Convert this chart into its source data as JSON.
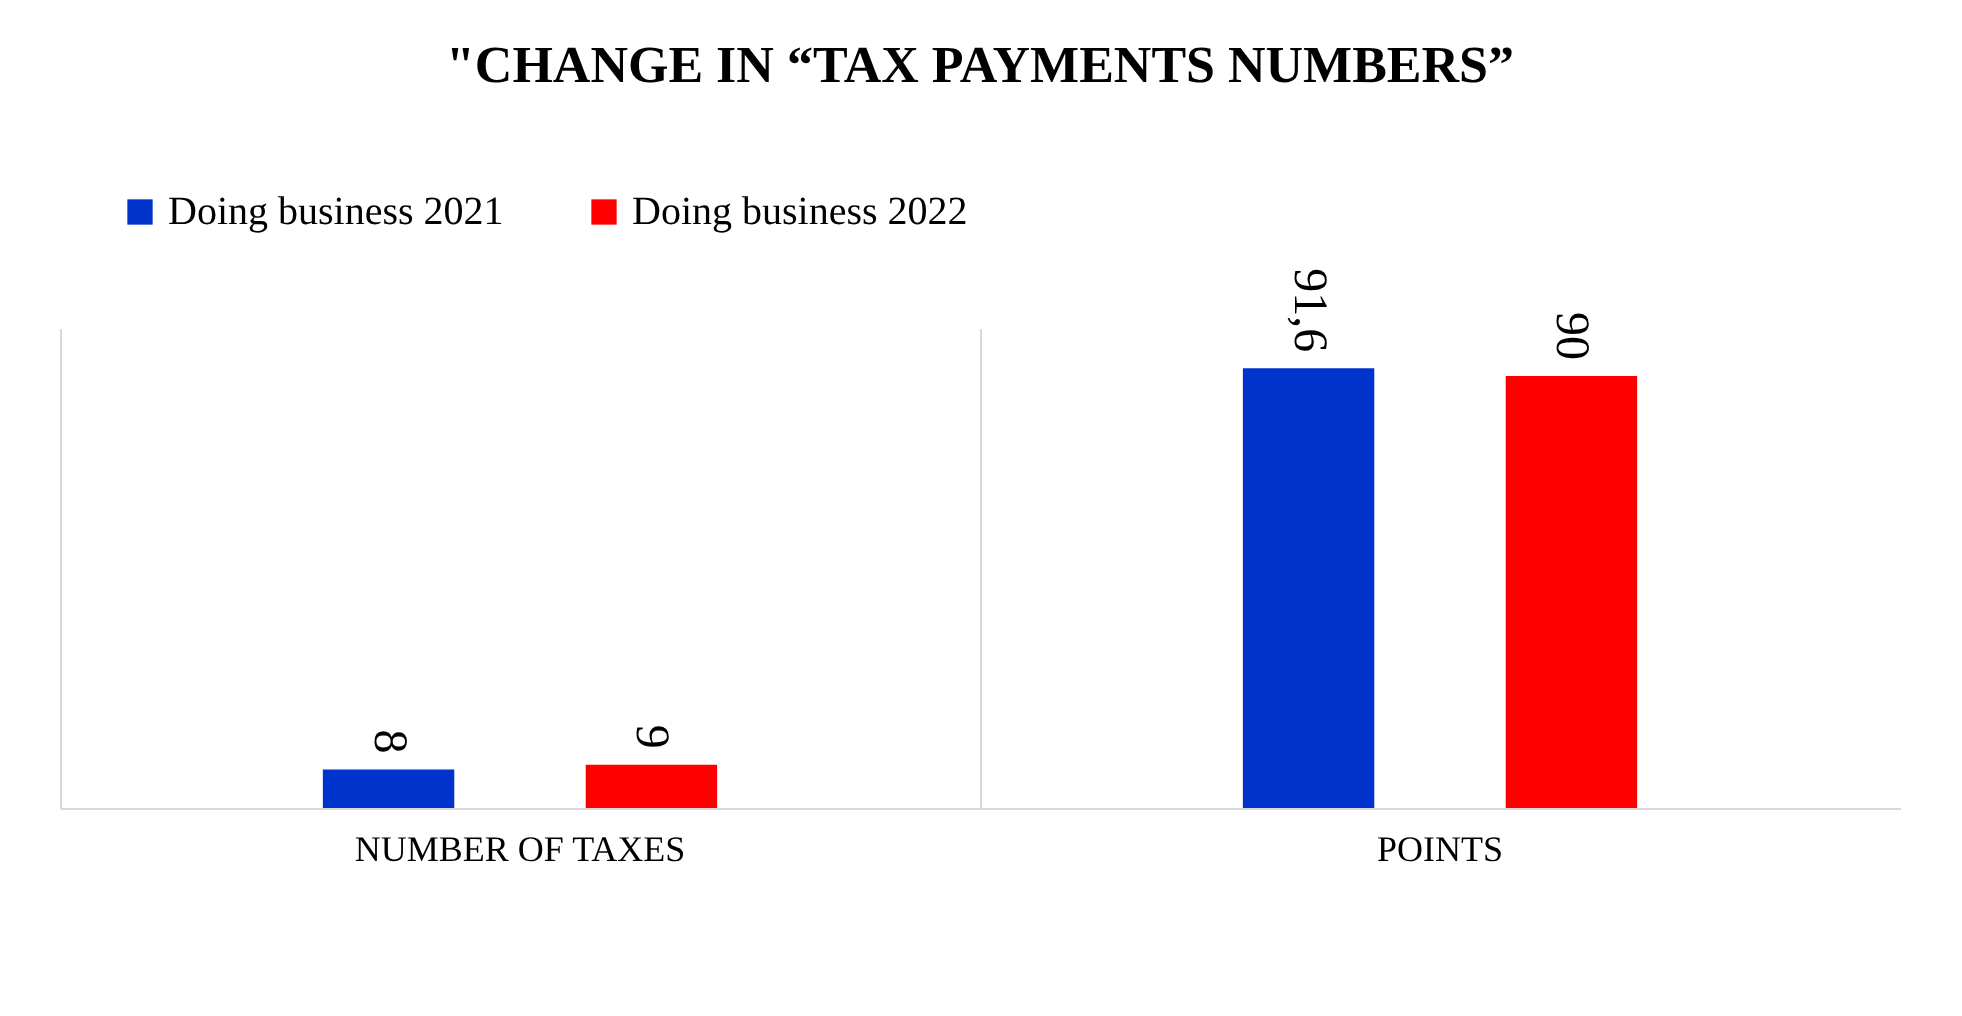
{
  "chart_data": {
    "type": "bar",
    "title": "\"CHANGE IN “TAX PAYMENTS NUMBERS”",
    "categories": [
      "NUMBER OF TAXES",
      "POINTS"
    ],
    "series": [
      {
        "name": "Doing business 2021",
        "color": "#0033cc",
        "values": [
          8,
          91.6
        ],
        "value_labels": [
          "8",
          "91,6"
        ]
      },
      {
        "name": "Doing business 2022",
        "color": "#ff0000",
        "values": [
          9,
          90
        ],
        "value_labels": [
          "9",
          "90"
        ]
      }
    ],
    "legend": "top",
    "grid": "x",
    "tick_labels": "x"
  }
}
